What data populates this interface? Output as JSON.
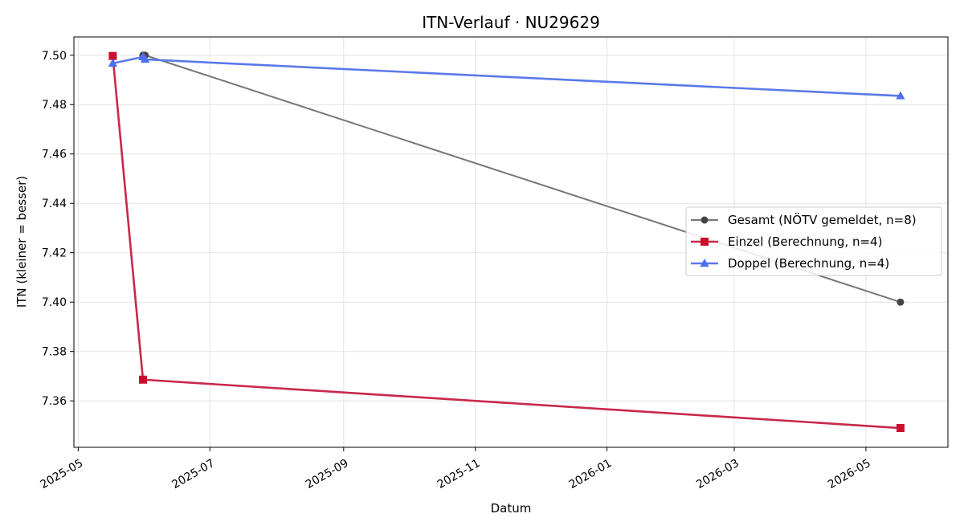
{
  "chart_data": {
    "type": "line",
    "title": "ITN-Verlauf · NU29629",
    "xlabel": "Datum",
    "ylabel": "ITN  (kleiner = besser)",
    "x_axis_type": "date",
    "xlim": [
      "2025-04-29",
      "2026-06-08"
    ],
    "ylim": [
      7.3412,
      7.5074
    ],
    "x_ticks": [
      "2025-05-01",
      "2025-07-01",
      "2025-09-01",
      "2025-11-01",
      "2026-01-01",
      "2026-03-01",
      "2026-05-01"
    ],
    "x_tick_labels": [
      "2025-05",
      "2025-07",
      "2025-09",
      "2025-11",
      "2026-01",
      "2026-03",
      "2026-05"
    ],
    "y_ticks": [
      7.36,
      7.38,
      7.4,
      7.42,
      7.44,
      7.46,
      7.48,
      7.5
    ],
    "y_tick_labels": [
      "7.36",
      "7.38",
      "7.40",
      "7.42",
      "7.44",
      "7.46",
      "7.48",
      "7.50"
    ],
    "grid": true,
    "legend_position": "center-right",
    "series": [
      {
        "name": "Gesamt (NÖTV gemeldet, n=8)",
        "color": "#777777",
        "marker_color": "#444444",
        "marker": "circle",
        "points": [
          {
            "x": "2025-05-31",
            "y": 7.5
          },
          {
            "x": "2025-06-01",
            "y": 7.5
          },
          {
            "x": "2026-05-17",
            "y": 7.4
          }
        ]
      },
      {
        "name": "Einzel (Berechnung, n=4)",
        "color": "#c8284a",
        "marker_color": "#c8102e",
        "marker": "square",
        "points": [
          {
            "x": "2025-05-17",
            "y": 7.4997
          },
          {
            "x": "2025-05-31",
            "y": 7.3686
          },
          {
            "x": "2026-05-17",
            "y": 7.349
          }
        ]
      },
      {
        "name": "Doppel (Berechnung, n=4)",
        "color": "#5b79e8",
        "marker_color": "#4f6ff0",
        "marker": "triangle",
        "points": [
          {
            "x": "2025-05-17",
            "y": 7.4967
          },
          {
            "x": "2025-05-31",
            "y": 7.4993
          },
          {
            "x": "2025-06-01",
            "y": 7.4983
          },
          {
            "x": "2026-05-17",
            "y": 7.4835
          }
        ]
      }
    ]
  }
}
